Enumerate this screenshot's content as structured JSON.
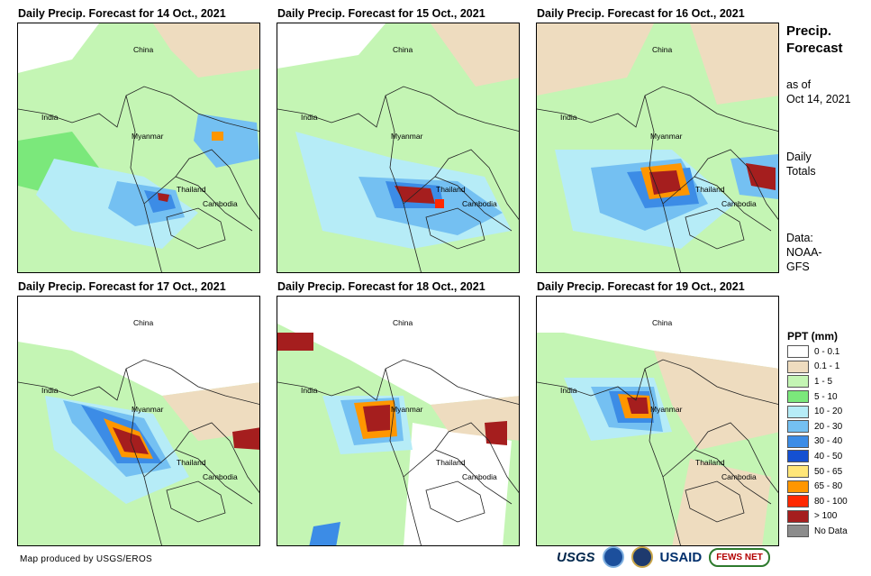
{
  "panels": [
    {
      "title": "Daily Precip. Forecast for 14 Oct., 2021",
      "labels": {
        "china": "China",
        "india": "India",
        "myanmar": "Myanmar",
        "thailand": "Thailand",
        "cambodia": "Cambodia"
      }
    },
    {
      "title": "Daily Precip. Forecast for 15 Oct., 2021",
      "labels": {
        "china": "China",
        "india": "India",
        "myanmar": "Myanmar",
        "thailand": "Thailand",
        "cambodia": "Cambodia"
      }
    },
    {
      "title": "Daily Precip. Forecast for 16 Oct., 2021",
      "labels": {
        "china": "China",
        "india": "India",
        "myanmar": "Myanmar",
        "thailand": "Thailand",
        "cambodia": "Cambodia"
      }
    },
    {
      "title": "Daily Precip. Forecast for 17 Oct., 2021",
      "labels": {
        "china": "China",
        "india": "India",
        "myanmar": "Myanmar",
        "thailand": "Thailand",
        "cambodia": "Cambodia"
      }
    },
    {
      "title": "Daily Precip. Forecast for 18 Oct., 2021",
      "labels": {
        "china": "China",
        "india": "India",
        "myanmar": "Myanmar",
        "thailand": "Thailand",
        "cambodia": "Cambodia"
      }
    },
    {
      "title": "Daily Precip. Forecast for 19 Oct., 2021",
      "labels": {
        "china": "China",
        "india": "India",
        "myanmar": "Myanmar",
        "thailand": "Thailand",
        "cambodia": "Cambodia"
      }
    }
  ],
  "sidebar": {
    "title_line1": "Precip.",
    "title_line2": "Forecast",
    "asof_line1": "as of",
    "asof_line2": "Oct 14, 2021",
    "daily_line1": "Daily",
    "daily_line2": "Totals",
    "data_line1": "Data:",
    "data_line2": "NOAA-",
    "data_line3": "GFS"
  },
  "legend": {
    "title": "PPT (mm)",
    "items": [
      {
        "label": "0 - 0.1",
        "color": "#ffffff"
      },
      {
        "label": "0.1 - 1",
        "color": "#eedcbf"
      },
      {
        "label": "1 - 5",
        "color": "#c4f5b4"
      },
      {
        "label": "5 - 10",
        "color": "#7be87b"
      },
      {
        "label": "10 - 20",
        "color": "#b6ecf7"
      },
      {
        "label": "20 - 30",
        "color": "#74c0f2"
      },
      {
        "label": "30 - 40",
        "color": "#3c8ce6"
      },
      {
        "label": "40 - 50",
        "color": "#1450d2"
      },
      {
        "label": "50 - 65",
        "color": "#ffe678"
      },
      {
        "label": "65 - 80",
        "color": "#ff9600"
      },
      {
        "label": "80 - 100",
        "color": "#ff2800"
      },
      {
        "label": "> 100",
        "color": "#a51e1e"
      },
      {
        "label": "No Data",
        "color": "#8c8c8c"
      }
    ]
  },
  "footer": {
    "credit": "Map produced by USGS/EROS",
    "logos": {
      "usgs": "USGS",
      "usaid": "USAID",
      "fews": "FEWS NET"
    }
  }
}
